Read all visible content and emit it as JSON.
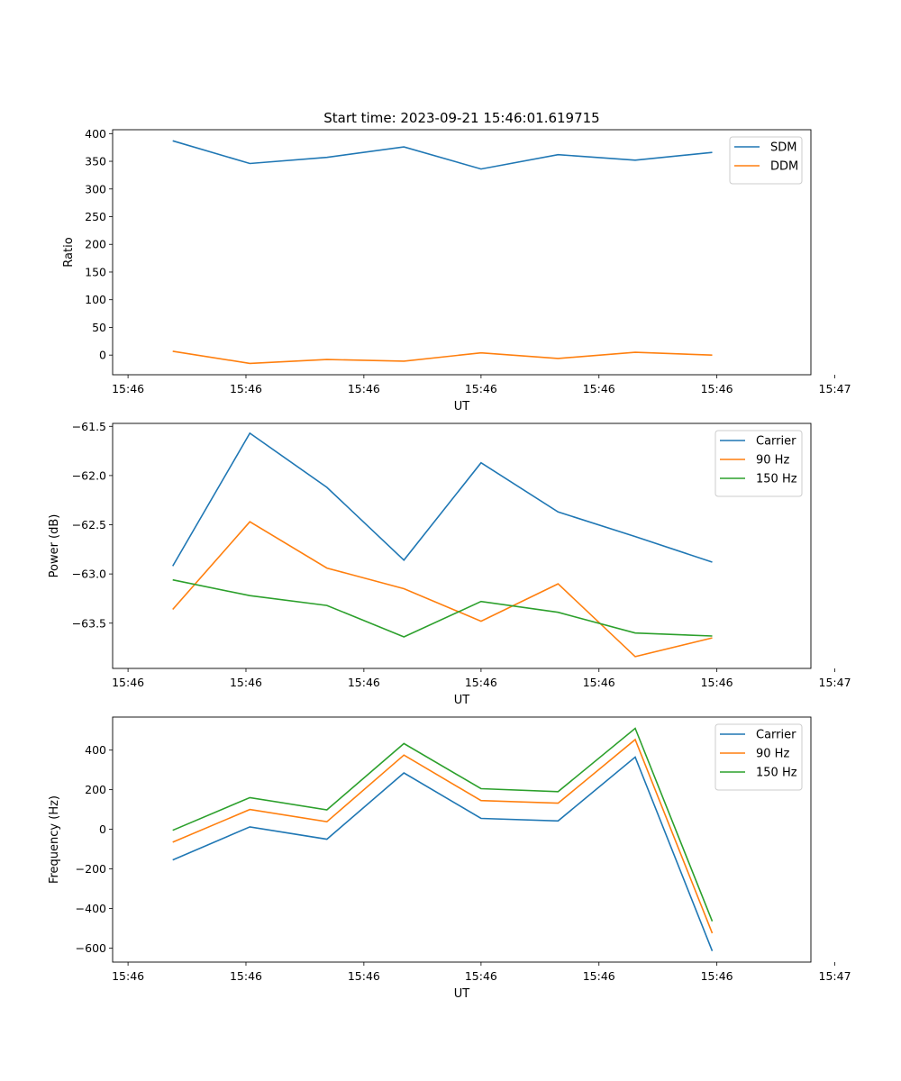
{
  "title": "Start time: 2023-09-21 15:46:01.619715",
  "chart_data": [
    {
      "type": "line",
      "xlabel": "UT",
      "ylabel": "Ratio",
      "x": [
        1,
        2,
        3,
        4,
        5,
        6,
        7,
        8
      ],
      "xlim": [
        0.22,
        9.28
      ],
      "x_ticks": [
        0.42,
        1.95,
        3.48,
        5.0,
        6.53,
        8.06,
        9.59
      ],
      "x_tick_labels": [
        "15:46",
        "15:46",
        "15:46",
        "15:46",
        "15:46",
        "15:46",
        "15:47"
      ],
      "ylim": [
        -35.5,
        407
      ],
      "yticks": [
        0,
        50,
        100,
        150,
        200,
        250,
        300,
        350,
        400
      ],
      "legend": "upper right",
      "series": [
        {
          "name": "SDM",
          "color": "#1f77b4",
          "values": [
            387,
            346,
            357,
            376,
            336,
            362,
            352,
            366
          ]
        },
        {
          "name": "DDM",
          "color": "#ff7f0e",
          "values": [
            7,
            -15,
            -8,
            -11,
            4,
            -6,
            5,
            0
          ]
        }
      ]
    },
    {
      "type": "line",
      "xlabel": "UT",
      "ylabel": "Power (dB)",
      "x": [
        1,
        2,
        3,
        4,
        5,
        6,
        7,
        8
      ],
      "xlim": [
        0.22,
        9.28
      ],
      "x_ticks": [
        0.42,
        1.95,
        3.48,
        5.0,
        6.53,
        8.06,
        9.59
      ],
      "x_tick_labels": [
        "15:46",
        "15:46",
        "15:46",
        "15:46",
        "15:46",
        "15:46",
        "15:47"
      ],
      "ylim": [
        -63.96,
        -61.47
      ],
      "yticks": [
        -63.5,
        -63.0,
        -62.5,
        -62.0,
        -61.5
      ],
      "ytick_labels": [
        "−63.5",
        "−63.0",
        "−62.5",
        "−62.0",
        "−61.5"
      ],
      "legend": "upper right",
      "series": [
        {
          "name": "Carrier",
          "color": "#1f77b4",
          "values": [
            -62.92,
            -61.57,
            -62.12,
            -62.86,
            -61.87,
            -62.37,
            -62.62,
            -62.88
          ]
        },
        {
          "name": "90 Hz",
          "color": "#ff7f0e",
          "values": [
            -63.36,
            -62.47,
            -62.94,
            -63.15,
            -63.48,
            -63.1,
            -63.84,
            -63.65
          ]
        },
        {
          "name": "150 Hz",
          "color": "#2ca02c",
          "values": [
            -63.06,
            -63.22,
            -63.32,
            -63.64,
            -63.28,
            -63.39,
            -63.6,
            -63.63
          ]
        }
      ]
    },
    {
      "type": "line",
      "xlabel": "UT",
      "ylabel": "Frequency (Hz)",
      "x": [
        1,
        2,
        3,
        4,
        5,
        6,
        7,
        8
      ],
      "xlim": [
        0.22,
        9.28
      ],
      "x_ticks": [
        0.42,
        1.95,
        3.48,
        5.0,
        6.53,
        8.06,
        9.59
      ],
      "x_tick_labels": [
        "15:46",
        "15:46",
        "15:46",
        "15:46",
        "15:46",
        "15:46",
        "15:47"
      ],
      "ylim": [
        -671,
        567
      ],
      "yticks": [
        -600,
        -400,
        -200,
        0,
        200,
        400
      ],
      "ytick_labels": [
        "−600",
        "−400",
        "−200",
        "0",
        "200",
        "400"
      ],
      "legend": "upper right",
      "series": [
        {
          "name": "Carrier",
          "color": "#1f77b4",
          "values": [
            -155,
            12,
            -50,
            285,
            55,
            42,
            365,
            -615
          ]
        },
        {
          "name": "90 Hz",
          "color": "#ff7f0e",
          "values": [
            -65,
            100,
            38,
            375,
            145,
            132,
            453,
            -525
          ]
        },
        {
          "name": "150 Hz",
          "color": "#2ca02c",
          "values": [
            -5,
            160,
            98,
            433,
            205,
            190,
            510,
            -465
          ]
        }
      ]
    }
  ]
}
